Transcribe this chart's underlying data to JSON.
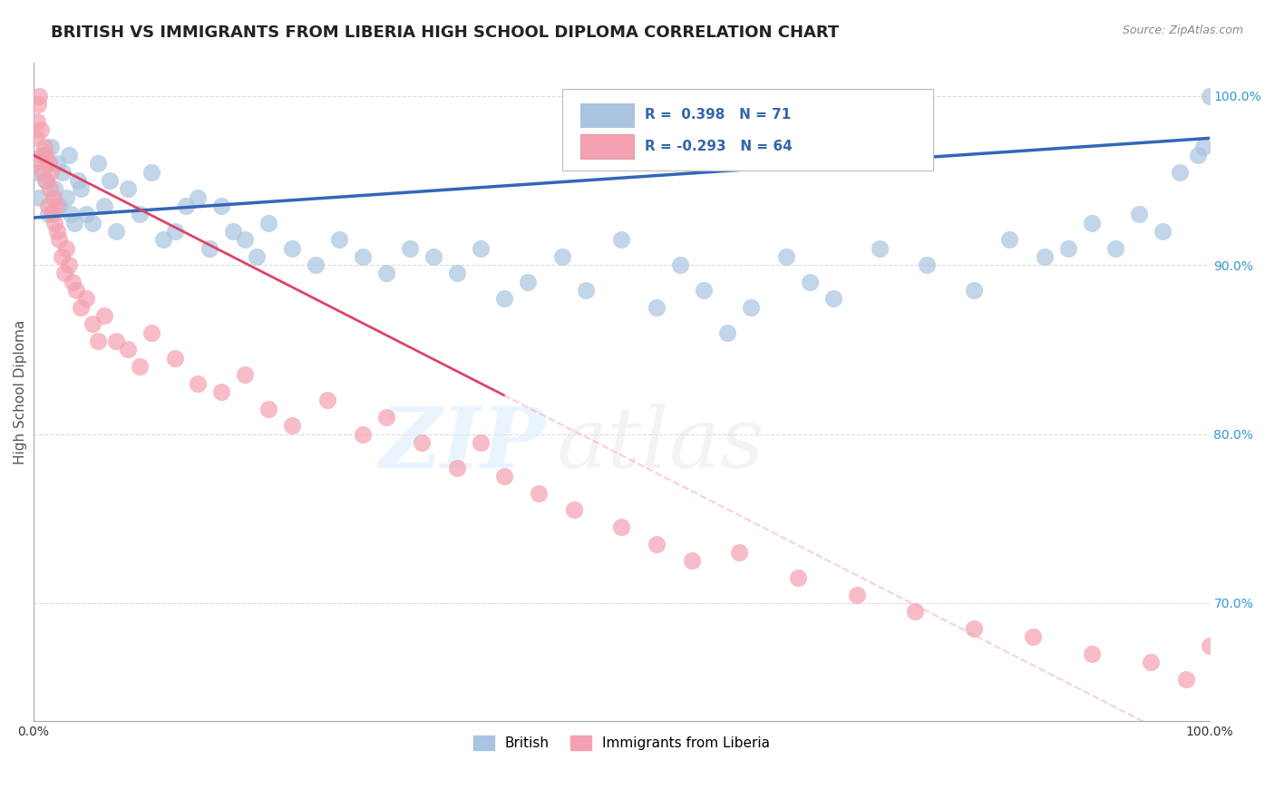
{
  "title": "BRITISH VS IMMIGRANTS FROM LIBERIA HIGH SCHOOL DIPLOMA CORRELATION CHART",
  "source": "Source: ZipAtlas.com",
  "ylabel": "High School Diploma",
  "watermark": "ZIPatlas",
  "xlim": [
    0.0,
    100.0
  ],
  "ylim": [
    63.0,
    102.0
  ],
  "yticks": [
    70.0,
    80.0,
    90.0,
    100.0
  ],
  "blue_label": "British",
  "pink_label": "Immigrants from Liberia",
  "blue_R": 0.398,
  "blue_N": 71,
  "pink_R": -0.293,
  "pink_N": 64,
  "blue_color": "#A8C4E0",
  "pink_color": "#F4A0B0",
  "blue_line_color": "#3366BB",
  "pink_line_solid_color": "#DD4466",
  "pink_line_dash_color": "#F4A0B0",
  "background_color": "#FFFFFF",
  "grid_color": "#CCCCCC",
  "blue_x": [
    0.3,
    0.5,
    0.8,
    1.0,
    1.2,
    1.5,
    1.8,
    2.0,
    2.2,
    2.5,
    2.8,
    3.0,
    3.2,
    3.5,
    3.8,
    4.0,
    4.5,
    5.0,
    5.5,
    6.0,
    6.5,
    7.0,
    8.0,
    9.0,
    10.0,
    11.0,
    12.0,
    13.0,
    14.0,
    15.0,
    16.0,
    17.0,
    18.0,
    19.0,
    20.0,
    22.0,
    24.0,
    26.0,
    28.0,
    30.0,
    32.0,
    34.0,
    36.0,
    38.0,
    40.0,
    42.0,
    45.0,
    47.0,
    50.0,
    53.0,
    55.0,
    57.0,
    59.0,
    61.0,
    64.0,
    66.0,
    68.0,
    72.0,
    76.0,
    80.0,
    83.0,
    86.0,
    88.0,
    90.0,
    92.0,
    94.0,
    96.0,
    97.5,
    99.0,
    99.5,
    100.0
  ],
  "blue_y": [
    95.5,
    94.0,
    96.5,
    95.0,
    93.0,
    97.0,
    94.5,
    96.0,
    93.5,
    95.5,
    94.0,
    96.5,
    93.0,
    92.5,
    95.0,
    94.5,
    93.0,
    92.5,
    96.0,
    93.5,
    95.0,
    92.0,
    94.5,
    93.0,
    95.5,
    91.5,
    92.0,
    93.5,
    94.0,
    91.0,
    93.5,
    92.0,
    91.5,
    90.5,
    92.5,
    91.0,
    90.0,
    91.5,
    90.5,
    89.5,
    91.0,
    90.5,
    89.5,
    91.0,
    88.0,
    89.0,
    90.5,
    88.5,
    91.5,
    87.5,
    90.0,
    88.5,
    86.0,
    87.5,
    90.5,
    89.0,
    88.0,
    91.0,
    90.0,
    88.5,
    91.5,
    90.5,
    91.0,
    92.5,
    91.0,
    93.0,
    92.0,
    95.5,
    96.5,
    97.0,
    100.0
  ],
  "pink_x": [
    0.1,
    0.2,
    0.3,
    0.4,
    0.5,
    0.6,
    0.7,
    0.8,
    0.9,
    1.0,
    1.1,
    1.2,
    1.3,
    1.4,
    1.5,
    1.6,
    1.7,
    1.8,
    1.9,
    2.0,
    2.2,
    2.4,
    2.6,
    2.8,
    3.0,
    3.3,
    3.6,
    4.0,
    4.5,
    5.0,
    5.5,
    6.0,
    7.0,
    8.0,
    9.0,
    10.0,
    12.0,
    14.0,
    16.0,
    18.0,
    20.0,
    22.0,
    25.0,
    28.0,
    30.0,
    33.0,
    36.0,
    38.0,
    40.0,
    43.0,
    46.0,
    50.0,
    53.0,
    56.0,
    60.0,
    65.0,
    70.0,
    75.0,
    80.0,
    85.0,
    90.0,
    95.0,
    98.0,
    100.0
  ],
  "pink_y": [
    96.0,
    97.5,
    98.5,
    99.5,
    100.0,
    98.0,
    96.5,
    95.5,
    97.0,
    96.5,
    95.0,
    93.5,
    96.0,
    94.5,
    95.5,
    93.0,
    94.0,
    92.5,
    93.5,
    92.0,
    91.5,
    90.5,
    89.5,
    91.0,
    90.0,
    89.0,
    88.5,
    87.5,
    88.0,
    86.5,
    85.5,
    87.0,
    85.5,
    85.0,
    84.0,
    86.0,
    84.5,
    83.0,
    82.5,
    83.5,
    81.5,
    80.5,
    82.0,
    80.0,
    81.0,
    79.5,
    78.0,
    79.5,
    77.5,
    76.5,
    75.5,
    74.5,
    73.5,
    72.5,
    73.0,
    71.5,
    70.5,
    69.5,
    68.5,
    68.0,
    67.0,
    66.5,
    65.5,
    67.5
  ],
  "pink_line_solid_end_x": 40.0,
  "blue_line_start_y": 92.8,
  "blue_line_end_y": 97.5,
  "pink_line_start_y": 96.5,
  "pink_line_end_y": 61.0
}
